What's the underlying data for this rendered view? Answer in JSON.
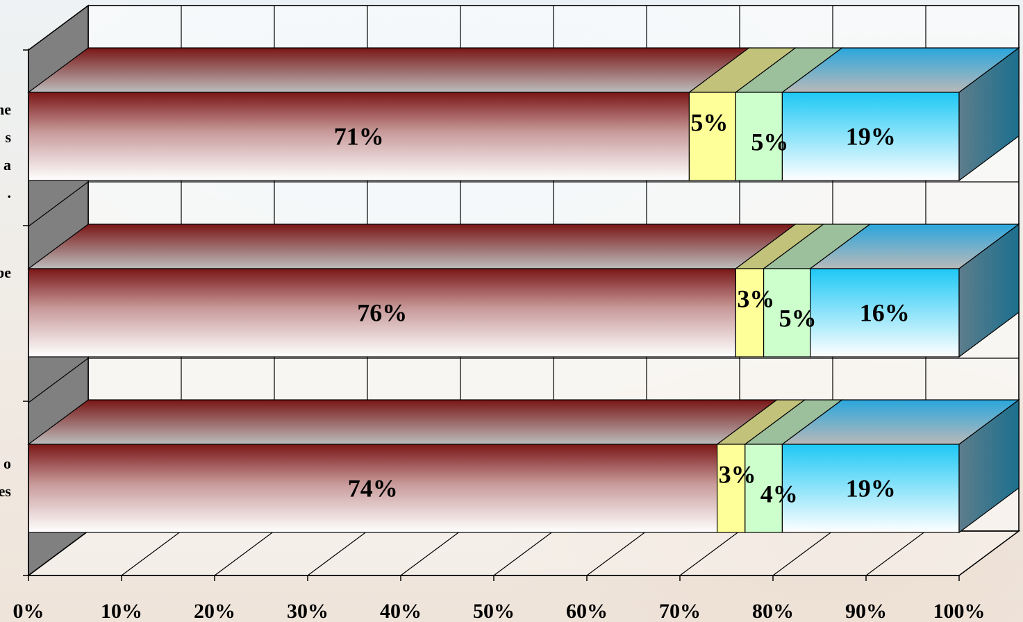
{
  "chart_data": {
    "type": "bar",
    "orientation": "horizontal",
    "stacked": "100%",
    "three_d": true,
    "categories": [
      "...the\ns\na\n.",
      "...be",
      "...o\n...es"
    ],
    "series": [
      {
        "values": [
          71,
          76,
          74
        ]
      },
      {
        "values": [
          5,
          3,
          3
        ]
      },
      {
        "values": [
          5,
          5,
          4
        ]
      },
      {
        "values": [
          19,
          16,
          19
        ]
      }
    ],
    "data_labels": [
      [
        "71%",
        "5%",
        "5%",
        "19%"
      ],
      [
        "76%",
        "3%",
        "5%",
        "16%"
      ],
      [
        "74%",
        "3%",
        "4%",
        "19%"
      ]
    ],
    "xlim": [
      0,
      100
    ],
    "x_tick_labels": [
      "0%",
      "10%",
      "20%",
      "30%",
      "40%",
      "50%",
      "60%",
      "70%",
      "80%",
      "90%",
      "100%"
    ],
    "grid": true,
    "legend": "none",
    "colors": {
      "series": [
        "#7a1616",
        "#ffff99",
        "#ccffcc",
        "#33ccff"
      ],
      "series_top": [
        "#b8b8b8",
        "#c2c27a",
        "#9cbf9c",
        "#4aaee0"
      ],
      "series_side": [
        "#444444",
        "#6b6b4a",
        "#6a866a",
        "#2c6a82"
      ],
      "wall": "#ffffff",
      "wall_side": "#808080",
      "grid": "#000000"
    },
    "visible_category_text": [
      [
        "he",
        "s",
        "a",
        "."
      ],
      [
        "be"
      ],
      [
        "o",
        "es"
      ]
    ]
  }
}
